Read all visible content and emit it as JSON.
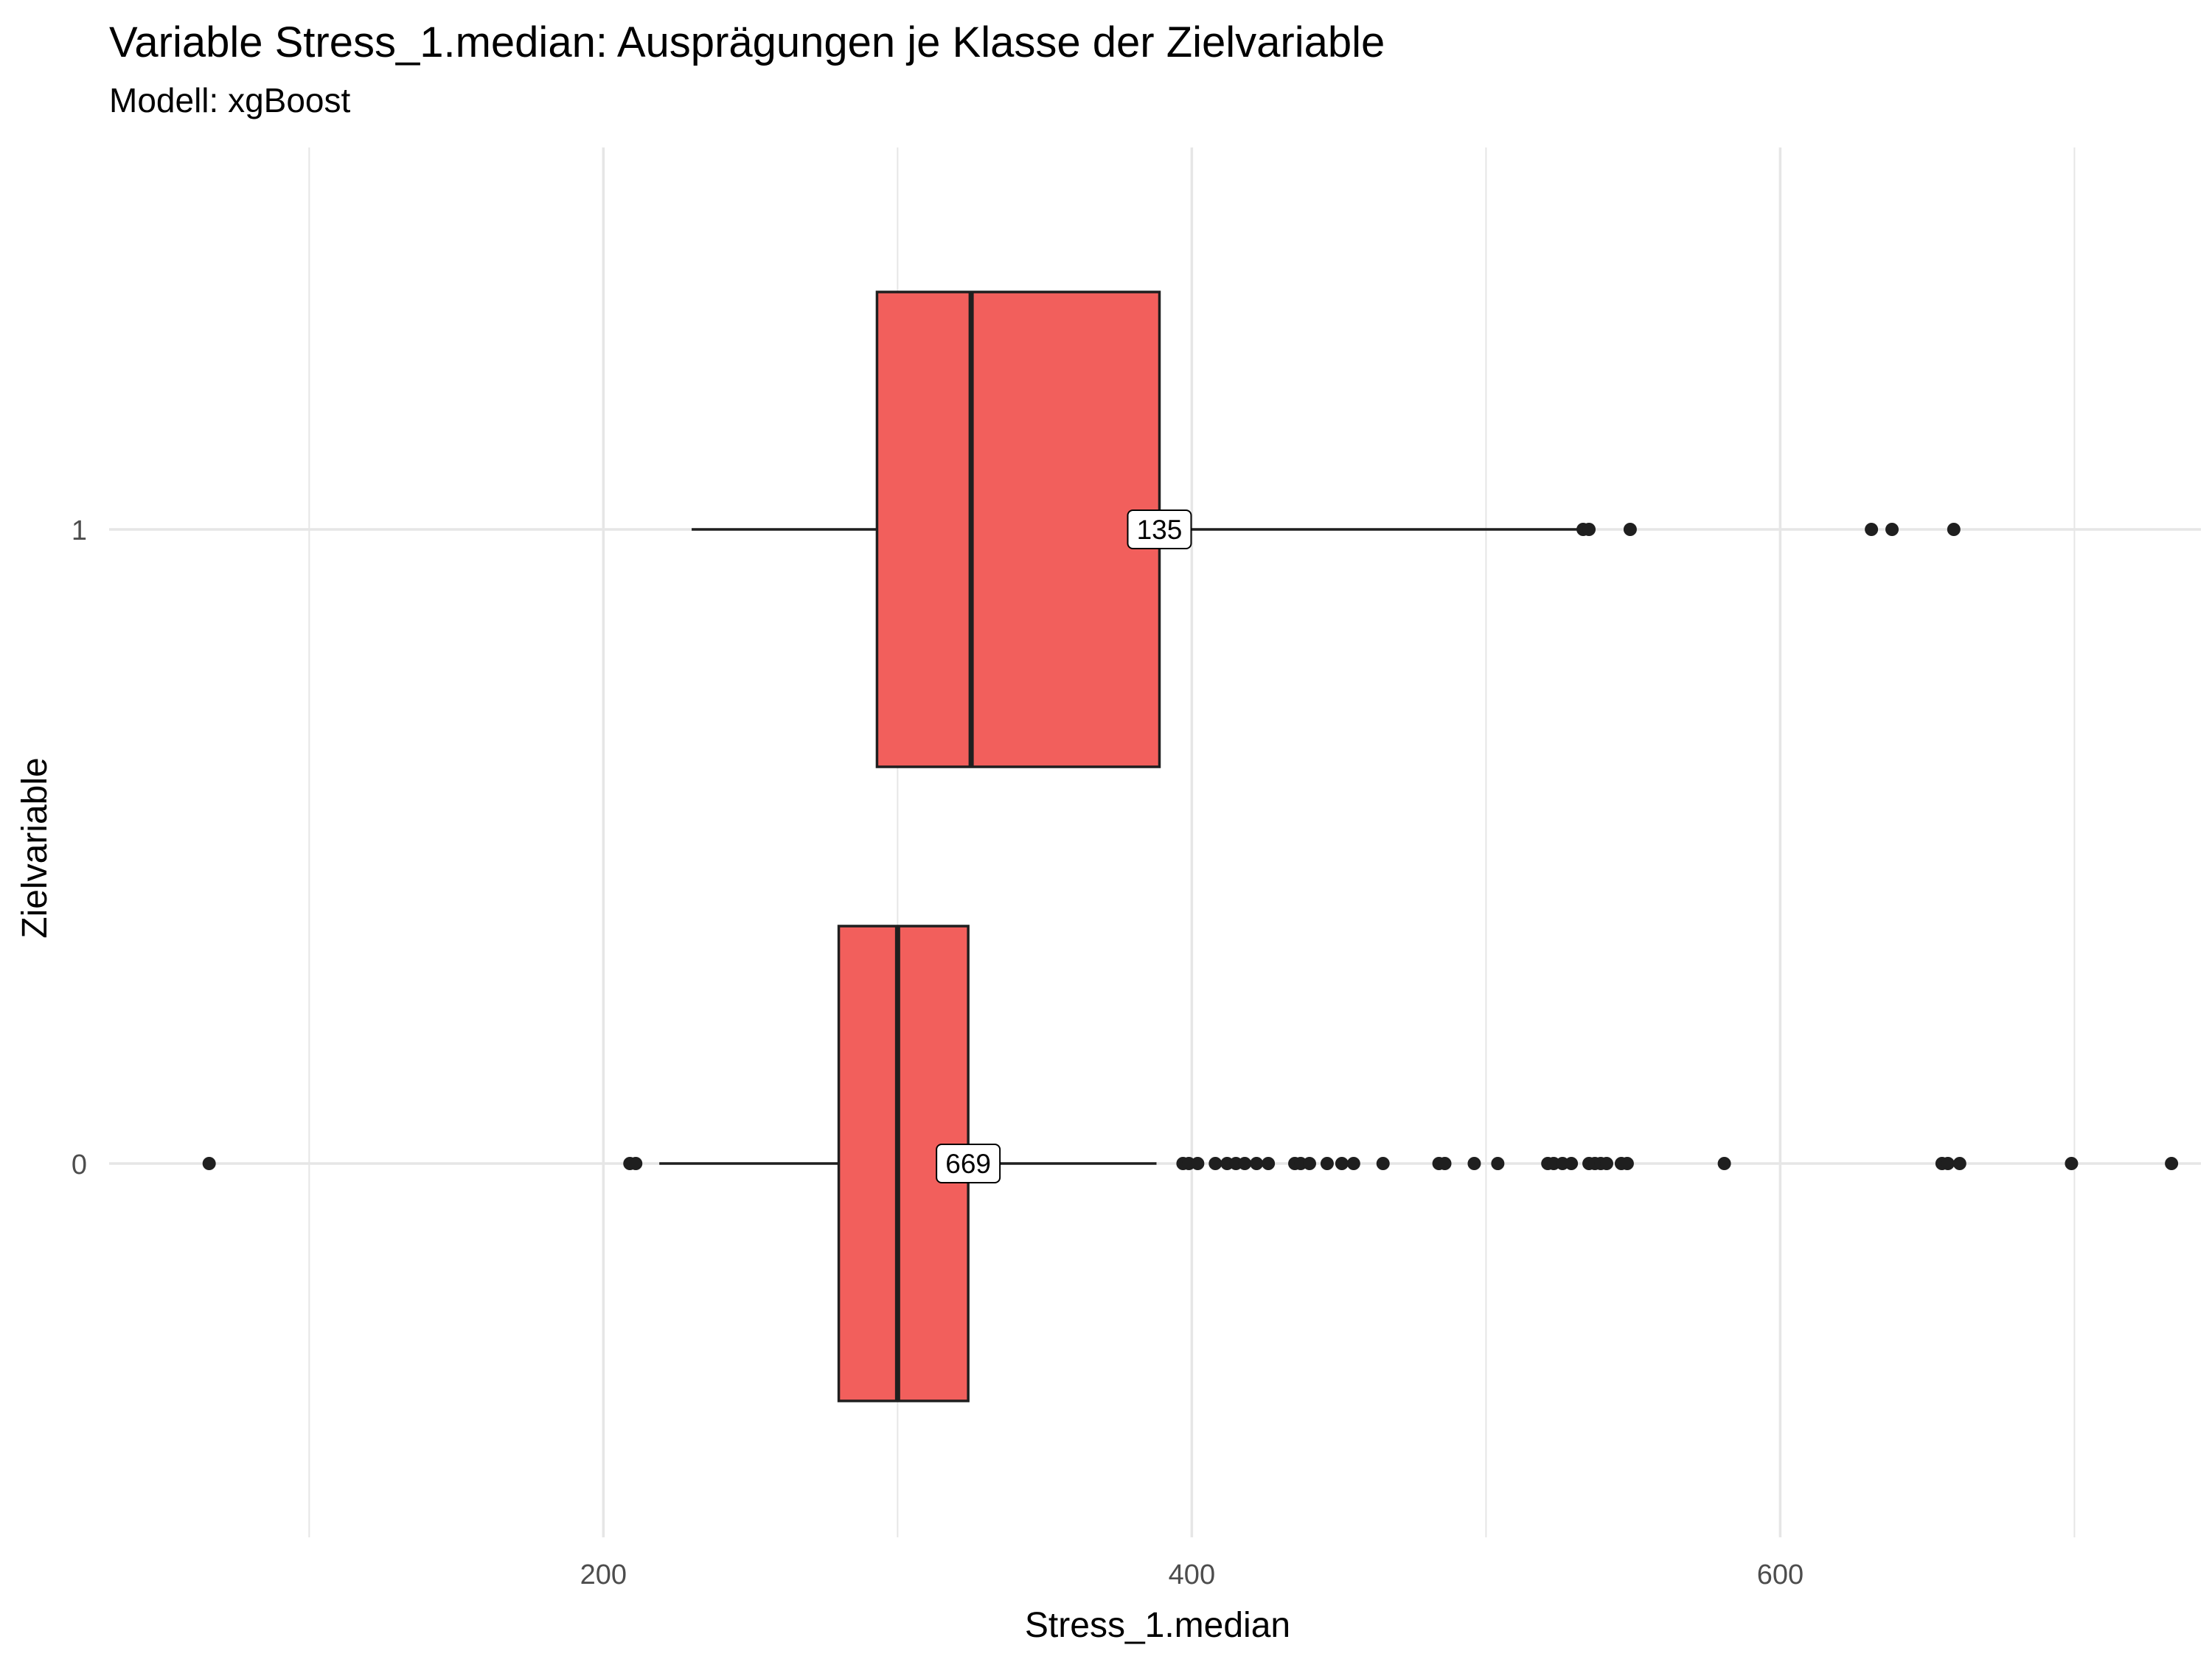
{
  "chart_data": {
    "type": "boxplot",
    "orientation": "horizontal",
    "title": "Variable Stress_1.median: Ausprägungen je Klasse der Zielvariable",
    "subtitle": "Modell: xgBoost",
    "xlabel": "Stress_1.median",
    "ylabel": "Zielvariable",
    "xlim": [
      32,
      743
    ],
    "x_ticks": [
      200,
      400,
      600
    ],
    "x_minor_gridlines": [
      100,
      300,
      500,
      700
    ],
    "categories": [
      "0",
      "1"
    ],
    "grid": true,
    "colors": {
      "box_fill": "#F25F5C",
      "outline": "#1f1f1f",
      "grid": "#e6e6e6"
    },
    "boxes": [
      {
        "category": "0",
        "count_label": "669",
        "whisker_low": 219,
        "q1": 280,
        "median": 300,
        "q3": 324,
        "whisker_high": 388,
        "outliers": [
          66,
          209,
          211,
          397,
          399,
          402,
          408,
          412,
          415,
          418,
          422,
          426,
          435,
          437,
          440,
          446,
          451,
          455,
          465,
          484,
          486,
          496,
          504,
          521,
          523,
          526,
          529,
          535,
          537,
          539,
          541,
          546,
          548,
          581,
          655,
          657,
          661,
          699,
          733
        ]
      },
      {
        "category": "1",
        "count_label": "135",
        "whisker_low": 230,
        "q1": 293,
        "median": 325,
        "q3": 389,
        "whisker_high": 533,
        "outliers": [
          533,
          535,
          549,
          631,
          638,
          659
        ]
      }
    ]
  }
}
